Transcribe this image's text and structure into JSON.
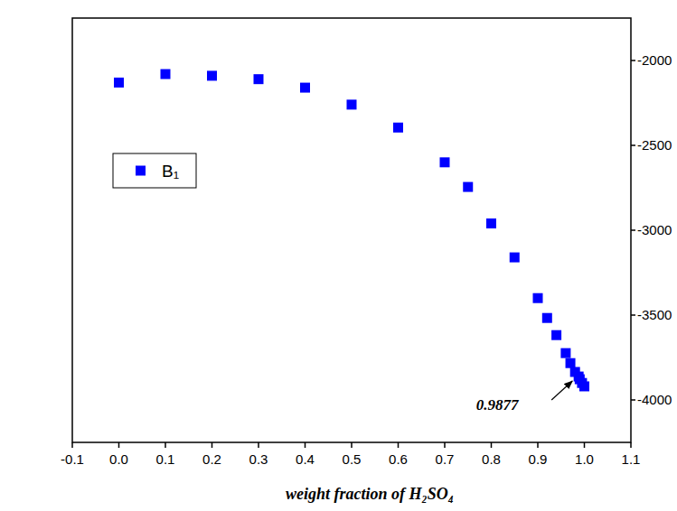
{
  "chart_data": {
    "type": "scatter",
    "x_label": "weight fraction of H₂SO₄",
    "x": [
      0.0,
      0.1,
      0.2,
      0.3,
      0.4,
      0.5,
      0.6,
      0.7,
      0.75,
      0.8,
      0.85,
      0.9,
      0.92,
      0.94,
      0.96,
      0.97,
      0.98,
      0.9877,
      0.99,
      0.995,
      1.0
    ],
    "series": [
      {
        "name": "B₁",
        "color": "#0000ff",
        "marker": "square",
        "values": [
          -2130,
          -2080,
          -2090,
          -2110,
          -2160,
          -2260,
          -2395,
          -2600,
          -2745,
          -2960,
          -3160,
          -3400,
          -3517,
          -3618,
          -3724,
          -3783,
          -3835,
          -3862,
          -3878,
          -3900,
          -3920
        ]
      }
    ],
    "xlim": [
      -0.1,
      1.1
    ],
    "xticks": [
      -0.1,
      {
        "value": 0,
        "label": "0.0"
      },
      0.1,
      0.2,
      0.3,
      0.4,
      0.5,
      0.6,
      0.7,
      0.8,
      0.9,
      {
        "value": 1,
        "label": "1.0"
      },
      1.1
    ],
    "ylim": [
      -4250,
      -1750
    ],
    "yticks": [
      -2000,
      -2500,
      -3000,
      -3500,
      -4000
    ],
    "grid": false,
    "legend": "upper left",
    "annotations": [
      {
        "text": "0.9877",
        "x": 0.9877,
        "y": -3862
      }
    ]
  }
}
